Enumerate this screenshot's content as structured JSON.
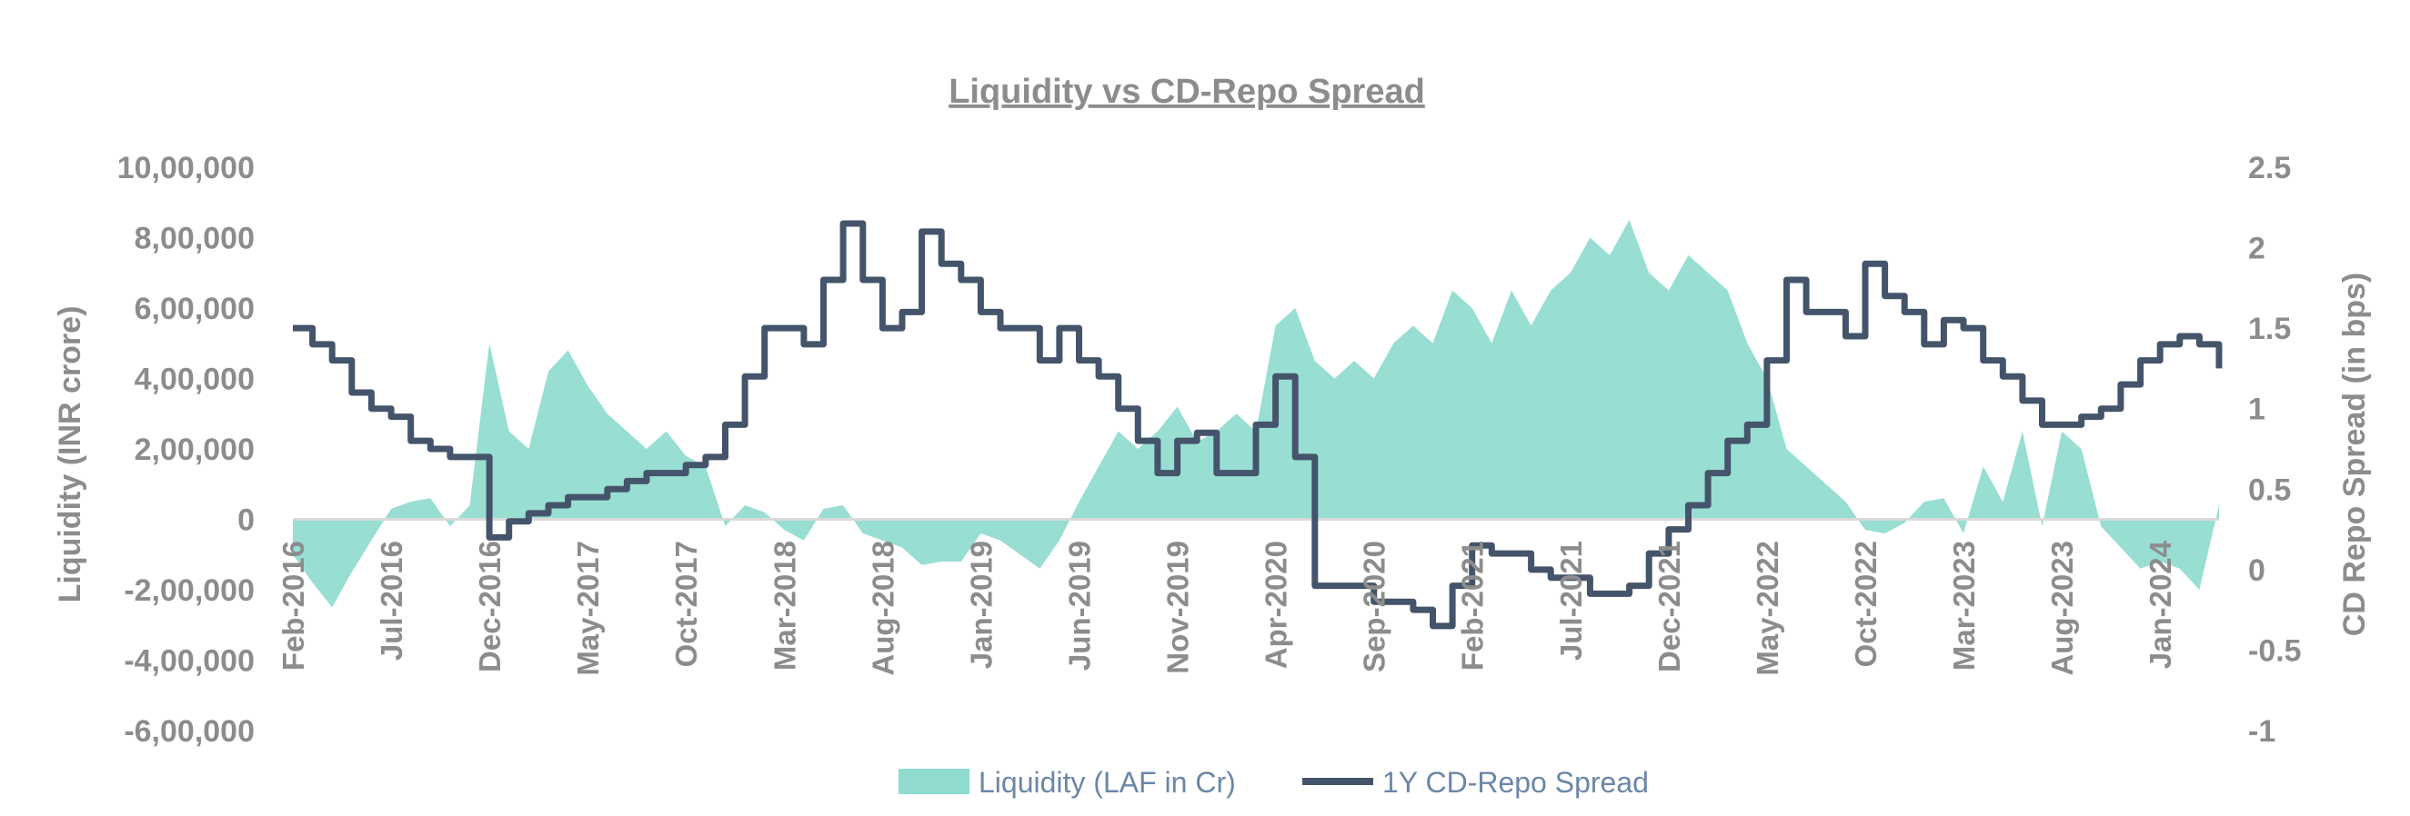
{
  "chart_data": {
    "type": "area",
    "title": "Liquidity vs CD-Repo Spread",
    "ylabel": "Liquidity (INR crore)",
    "y2label": "CD Repo Spread (in bps)",
    "ylim": [
      -600000,
      1000000
    ],
    "y2lim": [
      -1,
      2.5
    ],
    "yticks": [
      {
        "value": 1000000,
        "label": "10,00,000"
      },
      {
        "value": 800000,
        "label": "8,00,000"
      },
      {
        "value": 600000,
        "label": "6,00,000"
      },
      {
        "value": 400000,
        "label": "4,00,000"
      },
      {
        "value": 200000,
        "label": "2,00,000"
      },
      {
        "value": 0,
        "label": "0"
      },
      {
        "value": -200000,
        "label": "-2,00,000"
      },
      {
        "value": -400000,
        "label": "-4,00,000"
      },
      {
        "value": -600000,
        "label": "-6,00,000"
      }
    ],
    "y2ticks": [
      {
        "value": 2.5,
        "label": "2.5"
      },
      {
        "value": 2,
        "label": "2"
      },
      {
        "value": 1.5,
        "label": "1.5"
      },
      {
        "value": 1,
        "label": "1"
      },
      {
        "value": 0.5,
        "label": "0.5"
      },
      {
        "value": 0,
        "label": "0"
      },
      {
        "value": -0.5,
        "label": "-0.5"
      },
      {
        "value": -1,
        "label": "-1"
      }
    ],
    "xlim": [
      "2016-02",
      "2024-04"
    ],
    "xticks": [
      "Feb-2016",
      "Jul-2016",
      "Dec-2016",
      "May-2017",
      "Oct-2017",
      "Mar-2018",
      "Aug-2018",
      "Jan-2019",
      "Jun-2019",
      "Nov-2019",
      "Apr-2020",
      "Sep-2020",
      "Feb-2021",
      "Jul-2021",
      "Dec-2021",
      "May-2022",
      "Oct-2022",
      "Mar-2023",
      "Aug-2023",
      "Jan-2024"
    ],
    "legend_position": "bottom",
    "series": [
      {
        "name": "Liquidity (LAF in Cr)",
        "kind": "area",
        "axis": "left",
        "color": "#8fdbcf",
        "x": [
          "2016-02",
          "2016-03",
          "2016-04",
          "2016-05",
          "2016-06",
          "2016-07",
          "2016-08",
          "2016-09",
          "2016-10",
          "2016-11",
          "2016-12",
          "2017-01",
          "2017-02",
          "2017-03",
          "2017-04",
          "2017-05",
          "2017-06",
          "2017-07",
          "2017-08",
          "2017-09",
          "2017-10",
          "2017-11",
          "2017-12",
          "2018-01",
          "2018-02",
          "2018-03",
          "2018-04",
          "2018-05",
          "2018-06",
          "2018-07",
          "2018-08",
          "2018-09",
          "2018-10",
          "2018-11",
          "2018-12",
          "2019-01",
          "2019-02",
          "2019-03",
          "2019-04",
          "2019-05",
          "2019-06",
          "2019-07",
          "2019-08",
          "2019-09",
          "2019-10",
          "2019-11",
          "2019-12",
          "2020-01",
          "2020-02",
          "2020-03",
          "2020-04",
          "2020-05",
          "2020-06",
          "2020-07",
          "2020-08",
          "2020-09",
          "2020-10",
          "2020-11",
          "2020-12",
          "2021-01",
          "2021-02",
          "2021-03",
          "2021-04",
          "2021-05",
          "2021-06",
          "2021-07",
          "2021-08",
          "2021-09",
          "2021-10",
          "2021-11",
          "2021-12",
          "2022-01",
          "2022-02",
          "2022-03",
          "2022-04",
          "2022-05",
          "2022-06",
          "2022-07",
          "2022-08",
          "2022-09",
          "2022-10",
          "2022-11",
          "2022-12",
          "2023-01",
          "2023-02",
          "2023-03",
          "2023-04",
          "2023-05",
          "2023-06",
          "2023-07",
          "2023-08",
          "2023-09",
          "2023-10",
          "2023-11",
          "2023-12",
          "2024-01",
          "2024-02",
          "2024-03",
          "2024-04"
        ],
        "values": [
          -100000,
          -180000,
          -250000,
          -150000,
          -60000,
          30000,
          50000,
          60000,
          -20000,
          40000,
          500000,
          250000,
          200000,
          420000,
          480000,
          380000,
          300000,
          250000,
          200000,
          250000,
          180000,
          150000,
          -20000,
          40000,
          20000,
          -30000,
          -60000,
          30000,
          40000,
          -40000,
          -60000,
          -80000,
          -130000,
          -120000,
          -120000,
          -40000,
          -60000,
          -100000,
          -140000,
          -60000,
          50000,
          150000,
          250000,
          200000,
          250000,
          320000,
          220000,
          250000,
          300000,
          250000,
          550000,
          600000,
          450000,
          400000,
          450000,
          400000,
          500000,
          550000,
          500000,
          650000,
          600000,
          500000,
          650000,
          550000,
          650000,
          700000,
          800000,
          750000,
          850000,
          700000,
          650000,
          750000,
          700000,
          650000,
          500000,
          400000,
          200000,
          150000,
          100000,
          50000,
          -30000,
          -40000,
          -10000,
          50000,
          60000,
          -40000,
          150000,
          50000,
          250000,
          -20000,
          250000,
          200000,
          -20000,
          -80000,
          -140000,
          -120000,
          -140000,
          -200000,
          40000
        ]
      },
      {
        "name": "1Y CD-Repo Spread",
        "kind": "line",
        "axis": "right",
        "color": "#44546a",
        "x": [
          "2016-02",
          "2016-03",
          "2016-04",
          "2016-05",
          "2016-06",
          "2016-07",
          "2016-08",
          "2016-09",
          "2016-10",
          "2016-11",
          "2016-12",
          "2017-01",
          "2017-02",
          "2017-03",
          "2017-04",
          "2017-05",
          "2017-06",
          "2017-07",
          "2017-08",
          "2017-09",
          "2017-10",
          "2017-11",
          "2017-12",
          "2018-01",
          "2018-02",
          "2018-03",
          "2018-04",
          "2018-05",
          "2018-06",
          "2018-07",
          "2018-08",
          "2018-09",
          "2018-10",
          "2018-11",
          "2018-12",
          "2019-01",
          "2019-02",
          "2019-03",
          "2019-04",
          "2019-05",
          "2019-06",
          "2019-07",
          "2019-08",
          "2019-09",
          "2019-10",
          "2019-11",
          "2019-12",
          "2020-01",
          "2020-02",
          "2020-03",
          "2020-04",
          "2020-05",
          "2020-06",
          "2020-07",
          "2020-08",
          "2020-09",
          "2020-10",
          "2020-11",
          "2020-12",
          "2021-01",
          "2021-02",
          "2021-03",
          "2021-04",
          "2021-05",
          "2021-06",
          "2021-07",
          "2021-08",
          "2021-09",
          "2021-10",
          "2021-11",
          "2021-12",
          "2022-01",
          "2022-02",
          "2022-03",
          "2022-04",
          "2022-05",
          "2022-06",
          "2022-07",
          "2022-08",
          "2022-09",
          "2022-10",
          "2022-11",
          "2022-12",
          "2023-01",
          "2023-02",
          "2023-03",
          "2023-04",
          "2023-05",
          "2023-06",
          "2023-07",
          "2023-08",
          "2023-09",
          "2023-10",
          "2023-11",
          "2023-12",
          "2024-01",
          "2024-02",
          "2024-03",
          "2024-04"
        ],
        "values": [
          1.5,
          1.4,
          1.3,
          1.1,
          1.0,
          0.95,
          0.8,
          0.75,
          0.7,
          0.7,
          0.2,
          0.3,
          0.35,
          0.4,
          0.45,
          0.45,
          0.5,
          0.55,
          0.6,
          0.6,
          0.65,
          0.7,
          0.9,
          1.2,
          1.5,
          1.5,
          1.4,
          1.8,
          2.15,
          1.8,
          1.5,
          1.6,
          2.1,
          1.9,
          1.8,
          1.6,
          1.5,
          1.5,
          1.3,
          1.5,
          1.3,
          1.2,
          1.0,
          0.8,
          0.6,
          0.8,
          0.85,
          0.6,
          0.6,
          0.9,
          1.2,
          0.7,
          -0.1,
          -0.1,
          -0.1,
          -0.2,
          -0.2,
          -0.25,
          -0.35,
          -0.1,
          0.15,
          0.1,
          0.1,
          0.0,
          -0.05,
          -0.05,
          -0.15,
          -0.15,
          -0.1,
          0.1,
          0.25,
          0.4,
          0.6,
          0.8,
          0.9,
          1.3,
          1.8,
          1.6,
          1.6,
          1.45,
          1.9,
          1.7,
          1.6,
          1.4,
          1.55,
          1.5,
          1.3,
          1.2,
          1.05,
          0.9,
          0.9,
          0.95,
          1.0,
          1.15,
          1.3,
          1.4,
          1.45,
          1.4,
          1.25
        ]
      }
    ]
  }
}
